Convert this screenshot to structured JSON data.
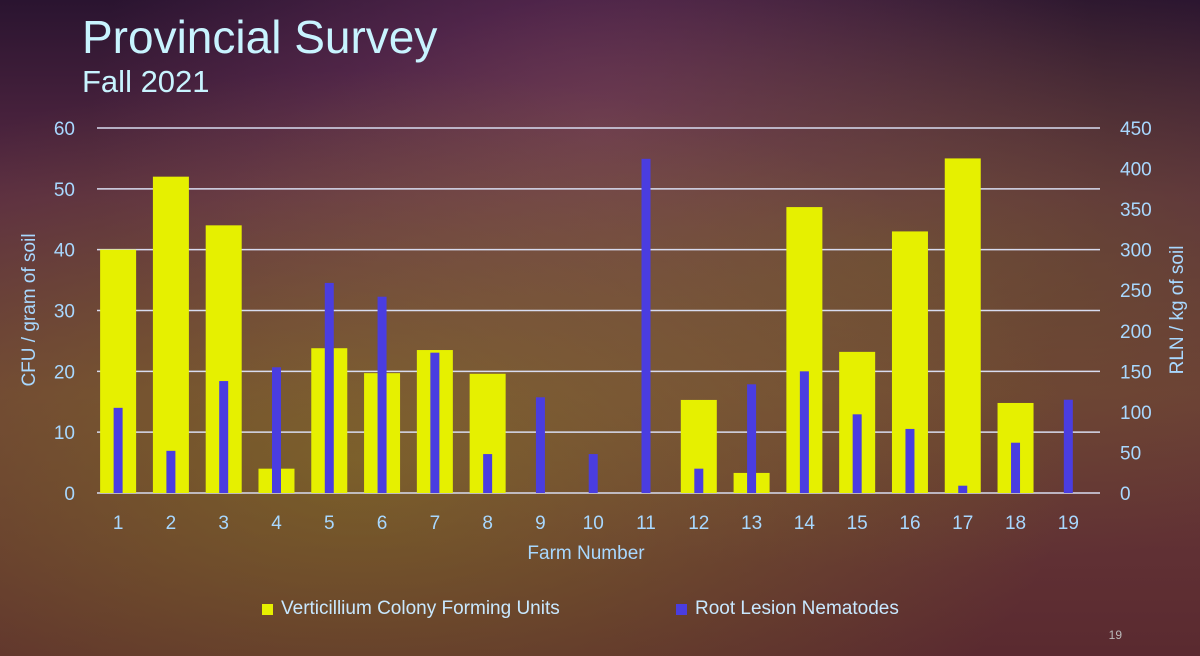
{
  "title": "Provincial Survey",
  "subtitle": "Fall 2021",
  "page_number": "19",
  "chart_data": {
    "type": "bar",
    "xlabel": "Farm Number",
    "ylabel": "CFU / gram of soil",
    "y2label": "RLN / kg of soil",
    "ylim": [
      0,
      60
    ],
    "y2lim": [
      0,
      450
    ],
    "yticks": [
      0,
      10,
      20,
      30,
      40,
      50,
      60
    ],
    "y2ticks": [
      0,
      50,
      100,
      150,
      200,
      250,
      300,
      350,
      400,
      450
    ],
    "grid": true,
    "legend": "bottom",
    "categories": [
      "1",
      "2",
      "3",
      "4",
      "5",
      "6",
      "7",
      "8",
      "9",
      "10",
      "11",
      "12",
      "13",
      "14",
      "15",
      "16",
      "17",
      "18",
      "19"
    ],
    "series": [
      {
        "name": "Verticillium Colony Forming Units",
        "axis": "left",
        "color": "#e6f000",
        "values": [
          40,
          52,
          44,
          4,
          23.8,
          19.7,
          23.5,
          19.6,
          0,
          0,
          0,
          15.3,
          3.3,
          47,
          23.2,
          43,
          55,
          14.8,
          0
        ]
      },
      {
        "name": "Root Lesion Nematodes",
        "axis": "right",
        "color": "#4a3de0",
        "values": [
          105,
          52,
          138,
          155,
          259,
          242,
          173,
          48,
          118,
          48,
          412,
          30,
          134,
          150,
          97,
          79,
          9,
          62,
          115
        ]
      }
    ]
  }
}
